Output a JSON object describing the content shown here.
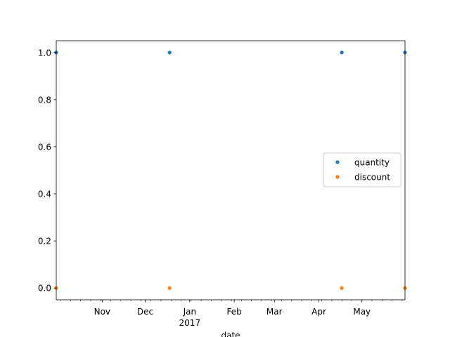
{
  "chart_data": {
    "type": "scatter",
    "title": "",
    "xlabel": "date",
    "ylabel": "",
    "x_type": "date",
    "xlim": [
      "2016-09-30",
      "2017-05-31"
    ],
    "ylim": [
      -0.05,
      1.05
    ],
    "x_tick_labels": [
      {
        "date": "2016-11-01",
        "label": "Nov"
      },
      {
        "date": "2016-12-01",
        "label": "Dec"
      },
      {
        "date": "2017-01-01",
        "label": "Jan",
        "sublabel": "2017"
      },
      {
        "date": "2017-02-01",
        "label": "Feb"
      },
      {
        "date": "2017-03-01",
        "label": "Mar"
      },
      {
        "date": "2017-04-01",
        "label": "Apr"
      },
      {
        "date": "2017-05-01",
        "label": "May"
      }
    ],
    "y_ticks": [
      0.0,
      0.2,
      0.4,
      0.6,
      0.8,
      1.0
    ],
    "y_tick_labels": [
      "0.0",
      "0.2",
      "0.4",
      "0.6",
      "0.8",
      "1.0"
    ],
    "grid": false,
    "legend_position": "center-right",
    "series": [
      {
        "name": "quantity",
        "color": "#1f77b4",
        "points": [
          {
            "x": "2016-09-30",
            "y": 1.0
          },
          {
            "x": "2016-12-18",
            "y": 1.0
          },
          {
            "x": "2017-04-17",
            "y": 1.0
          },
          {
            "x": "2017-05-31",
            "y": 1.0
          }
        ]
      },
      {
        "name": "discount",
        "color": "#ff7f0e",
        "points": [
          {
            "x": "2016-09-30",
            "y": 0.0
          },
          {
            "x": "2016-12-18",
            "y": 0.0
          },
          {
            "x": "2017-04-17",
            "y": 0.0
          },
          {
            "x": "2017-05-31",
            "y": 0.0
          }
        ]
      }
    ]
  }
}
